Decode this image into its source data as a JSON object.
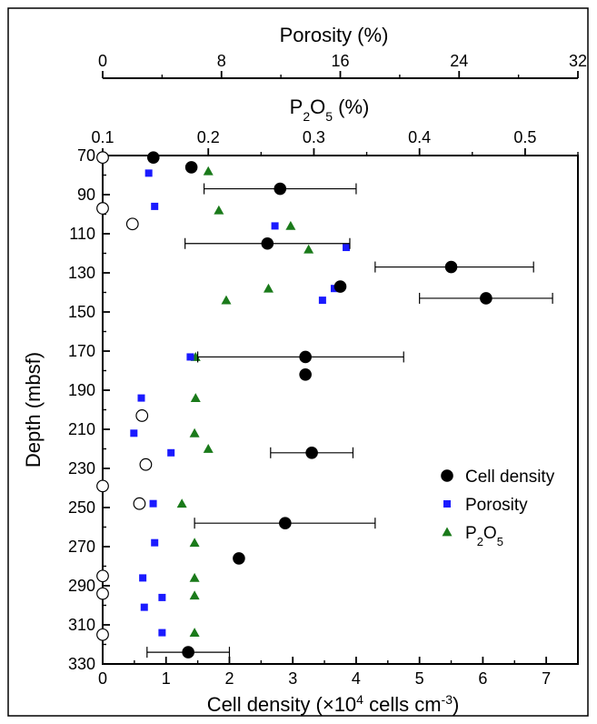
{
  "chart_data": {
    "type": "scatter",
    "title": "",
    "x_axes": [
      {
        "key": "porosity",
        "label": "Porosity (%)",
        "position": "top",
        "range": [
          0,
          32
        ],
        "ticks": [
          0,
          8,
          16,
          24,
          32
        ],
        "tick_labels": [
          "0",
          "8",
          "16",
          "24",
          "32"
        ]
      },
      {
        "key": "p2o5",
        "label_main": "P",
        "label_sub": "2",
        "label_rest": "O",
        "label_sub2": "5",
        "label_end": " (%)",
        "position": "top-inner",
        "range": [
          0.1,
          0.55
        ],
        "ticks": [
          0.1,
          0.2,
          0.3,
          0.4,
          0.5
        ],
        "tick_labels": [
          "0.1",
          "0.2",
          "0.3",
          "0.4",
          "0.5"
        ]
      },
      {
        "key": "cell",
        "label_main": "Cell density (×10",
        "label_sup": "4",
        "label_mid": " cells cm",
        "label_sup2": "-3",
        "label_end": ")",
        "position": "bottom",
        "range": [
          0,
          7.5
        ],
        "ticks": [
          0,
          1,
          2,
          3,
          4,
          5,
          6,
          7
        ],
        "tick_labels": [
          "0",
          "1",
          "2",
          "3",
          "4",
          "5",
          "6",
          "7"
        ]
      }
    ],
    "y_axis": {
      "label": "Depth (mbsf)",
      "range": [
        70,
        330
      ],
      "reversed": true,
      "ticks": [
        70,
        90,
        110,
        130,
        150,
        170,
        190,
        210,
        230,
        250,
        270,
        290,
        310,
        330
      ],
      "tick_labels": [
        "70",
        "90",
        "110",
        "130",
        "150",
        "170",
        "190",
        "210",
        "230",
        "250",
        "270",
        "290",
        "310",
        "330"
      ]
    },
    "series": [
      {
        "name": "Cell density",
        "axis": "cell",
        "marker": "filled-circle",
        "color": "#000000",
        "points": [
          {
            "x": 0.8,
            "y": 71
          },
          {
            "x": 1.4,
            "y": 76
          },
          {
            "x": 2.8,
            "y": 87,
            "xerr": [
              1.6,
              4.0
            ]
          },
          {
            "x": 2.6,
            "y": 115,
            "xerr": [
              1.3,
              3.9
            ]
          },
          {
            "x": 5.5,
            "y": 127,
            "xerr": [
              4.3,
              6.8
            ]
          },
          {
            "x": 3.75,
            "y": 137
          },
          {
            "x": 6.05,
            "y": 143,
            "xerr": [
              5.0,
              7.1
            ]
          },
          {
            "x": 3.2,
            "y": 173,
            "xerr": [
              1.5,
              4.75
            ]
          },
          {
            "x": 3.2,
            "y": 182
          },
          {
            "x": 3.3,
            "y": 222,
            "xerr": [
              2.65,
              3.95
            ]
          },
          {
            "x": 2.88,
            "y": 258,
            "xerr": [
              1.45,
              4.3
            ]
          },
          {
            "x": 2.15,
            "y": 276
          },
          {
            "x": 1.35,
            "y": 324,
            "xerr": [
              0.7,
              2.0
            ]
          }
        ]
      },
      {
        "name": "",
        "axis": "cell",
        "marker": "open-circle",
        "color": "#000000",
        "points": [
          {
            "x": 0.0,
            "y": 71
          },
          {
            "x": 0.0,
            "y": 97
          },
          {
            "x": 0.47,
            "y": 105
          },
          {
            "x": 0.62,
            "y": 203
          },
          {
            "x": 0.68,
            "y": 228
          },
          {
            "x": 0.0,
            "y": 239
          },
          {
            "x": 0.58,
            "y": 248
          },
          {
            "x": 0.0,
            "y": 285
          },
          {
            "x": 0.0,
            "y": 294
          },
          {
            "x": 0.0,
            "y": 315
          }
        ]
      },
      {
        "name": "Porosity",
        "axis": "porosity",
        "marker": "square",
        "color": "#1a1aff",
        "points": [
          {
            "x": 3.1,
            "y": 79
          },
          {
            "x": 3.5,
            "y": 96
          },
          {
            "x": 11.6,
            "y": 106
          },
          {
            "x": 16.4,
            "y": 117
          },
          {
            "x": 15.6,
            "y": 138
          },
          {
            "x": 14.8,
            "y": 144
          },
          {
            "x": 5.9,
            "y": 173
          },
          {
            "x": 2.6,
            "y": 194
          },
          {
            "x": 2.1,
            "y": 212
          },
          {
            "x": 4.6,
            "y": 222
          },
          {
            "x": 3.4,
            "y": 248
          },
          {
            "x": 3.5,
            "y": 268
          },
          {
            "x": 2.7,
            "y": 286
          },
          {
            "x": 4.0,
            "y": 296
          },
          {
            "x": 2.8,
            "y": 301
          },
          {
            "x": 4.0,
            "y": 314
          }
        ]
      },
      {
        "name": "P2O5",
        "axis": "p2o5",
        "marker": "triangle",
        "color": "#1a7a1a",
        "points": [
          {
            "x": 0.2,
            "y": 78
          },
          {
            "x": 0.21,
            "y": 98
          },
          {
            "x": 0.278,
            "y": 106
          },
          {
            "x": 0.295,
            "y": 118
          },
          {
            "x": 0.257,
            "y": 138
          },
          {
            "x": 0.217,
            "y": 144
          },
          {
            "x": 0.188,
            "y": 173
          },
          {
            "x": 0.188,
            "y": 194
          },
          {
            "x": 0.187,
            "y": 212
          },
          {
            "x": 0.2,
            "y": 220
          },
          {
            "x": 0.175,
            "y": 248
          },
          {
            "x": 0.187,
            "y": 268
          },
          {
            "x": 0.187,
            "y": 286
          },
          {
            "x": 0.187,
            "y": 295
          },
          {
            "x": 0.187,
            "y": 314
          }
        ]
      }
    ],
    "legend": {
      "placement": "lower-right",
      "entries": [
        {
          "label": "Cell density",
          "marker": "filled-circle",
          "color": "#000000"
        },
        {
          "label": "Porosity",
          "marker": "square",
          "color": "#1a1aff"
        },
        {
          "label_main": "P",
          "label_sub": "2",
          "label_rest": "O",
          "label_sub2": "5",
          "marker": "triangle",
          "color": "#1a7a1a"
        }
      ]
    },
    "grid": false
  }
}
